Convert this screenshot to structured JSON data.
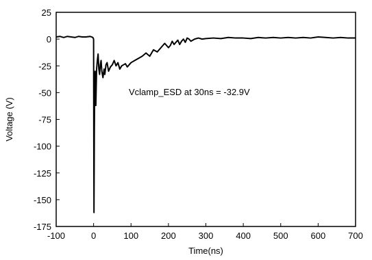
{
  "chart_data": {
    "type": "line",
    "title": "",
    "xlabel": "Time(ns)",
    "ylabel": "Voltage (V)",
    "xlim": [
      -100,
      700
    ],
    "ylim": [
      -175,
      25
    ],
    "xticks": [
      -100,
      0,
      100,
      200,
      300,
      400,
      500,
      600,
      700
    ],
    "xtick_labels": [
      "-100",
      "0",
      "100",
      "200",
      "300",
      "400",
      "500",
      "600",
      "700"
    ],
    "yticks": [
      25,
      0,
      -25,
      -50,
      -75,
      -100,
      -125,
      -150,
      -175
    ],
    "ytick_labels": [
      "25",
      "0",
      "-25",
      "-50",
      "-75",
      "-100",
      "-125",
      "-150",
      "-175"
    ],
    "grid": false,
    "line_color": "#000000",
    "annotation": "Vclamp_ESD at 30ns = -32.9V",
    "series": [
      {
        "x": [
          -100,
          -90,
          -80,
          -70,
          -60,
          -50,
          -40,
          -30,
          -20,
          -10,
          -5,
          -2,
          0,
          0.5,
          1,
          2,
          3,
          4,
          5,
          6,
          7,
          8,
          10,
          12,
          14,
          16,
          18,
          20,
          22,
          25,
          28,
          30,
          33,
          36,
          40,
          45,
          50,
          55,
          60,
          65,
          70,
          75,
          80,
          85,
          90,
          95,
          100,
          110,
          120,
          130,
          140,
          150,
          160,
          170,
          180,
          190,
          200,
          205,
          210,
          215,
          220,
          225,
          230,
          235,
          240,
          245,
          250,
          255,
          260,
          270,
          280,
          290,
          300,
          320,
          340,
          360,
          380,
          400,
          420,
          440,
          460,
          480,
          500,
          520,
          540,
          560,
          580,
          600,
          620,
          640,
          660,
          680,
          700
        ],
        "y": [
          2,
          2.5,
          1.5,
          2.5,
          2,
          1.5,
          2.5,
          2,
          2,
          2.5,
          2,
          1.5,
          0,
          -95,
          -162,
          -85,
          -40,
          -30,
          -55,
          -62,
          -45,
          -28,
          -20,
          -14,
          -28,
          -33,
          -24,
          -20,
          -30,
          -36,
          -28,
          -33,
          -24,
          -22,
          -30,
          -26,
          -24,
          -20,
          -25,
          -22,
          -28,
          -25,
          -24,
          -23,
          -26,
          -24,
          -22,
          -20,
          -18,
          -16,
          -13,
          -16,
          -10,
          -12,
          -8,
          -4,
          -8,
          -6,
          -2,
          -5,
          -3,
          -1,
          -5,
          -2,
          0,
          -3,
          1,
          0,
          -2,
          0,
          1,
          0,
          0.5,
          1,
          0.5,
          1.5,
          1,
          1,
          0.5,
          1.5,
          1,
          1.5,
          1,
          1.5,
          1,
          1.5,
          1,
          2,
          1.5,
          1,
          1.5,
          1,
          1
        ]
      }
    ]
  }
}
